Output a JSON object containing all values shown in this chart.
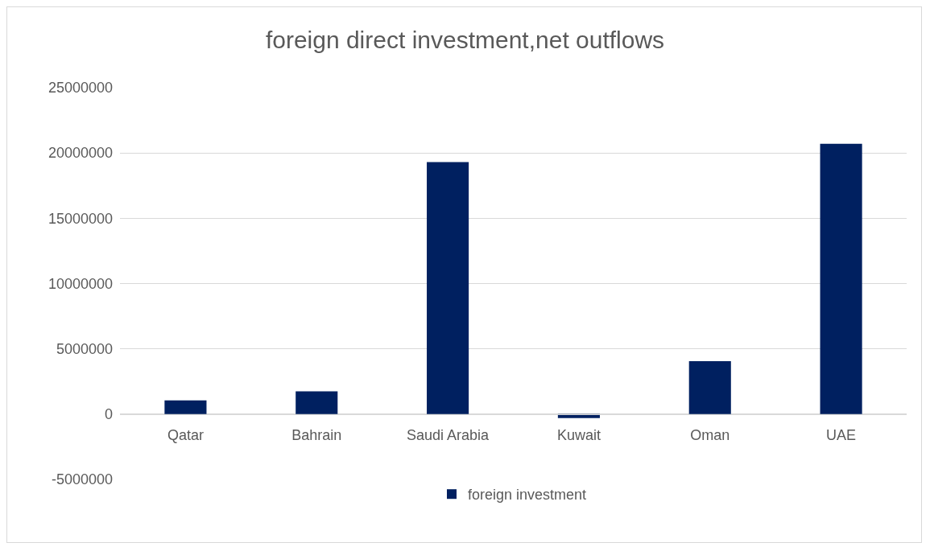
{
  "chart_data": {
    "type": "bar",
    "title": "foreign direct investment,net outflows",
    "categories": [
      "Qatar",
      "Bahrain",
      "Saudi Arabia",
      "Kuwait",
      "Oman",
      "UAE"
    ],
    "series": [
      {
        "name": "foreign investment",
        "color": "#002060",
        "values": [
          1050000,
          1750000,
          19300000,
          -300000,
          4050000,
          20700000
        ]
      }
    ],
    "ylim": [
      -5000000,
      25000000
    ],
    "yticks": [
      -5000000,
      0,
      5000000,
      10000000,
      15000000,
      20000000,
      25000000
    ],
    "grid": "y",
    "legend": "bottom"
  }
}
